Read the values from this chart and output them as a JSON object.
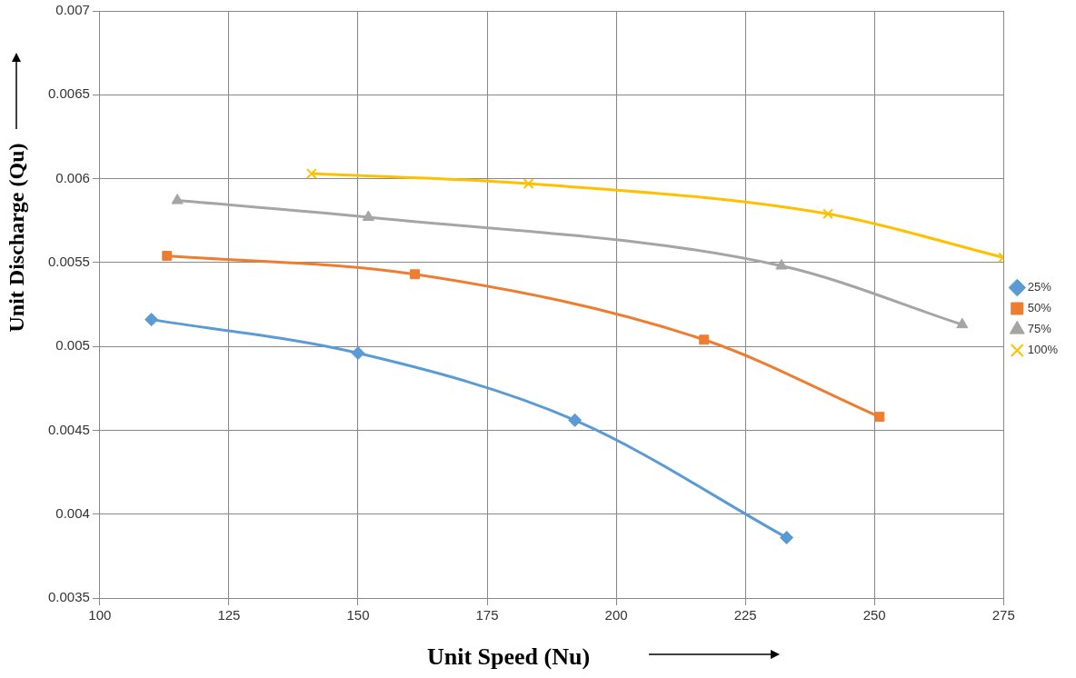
{
  "chart_data": {
    "type": "line",
    "xlabel": "Unit Speed (Nu)",
    "ylabel": "Unit Discharge (Qu)",
    "xlim": [
      100,
      275
    ],
    "xticks": [
      100,
      125,
      150,
      175,
      200,
      225,
      250,
      275
    ],
    "ylim": [
      0.0035,
      0.007
    ],
    "yticks": [
      0.0035,
      0.004,
      0.0045,
      0.005,
      0.0055,
      0.006,
      0.0065,
      0.007
    ],
    "grid": true,
    "legend": "right",
    "line_style": "solid",
    "series": [
      {
        "name": "25%",
        "color": "#5b9bd5",
        "marker": "diamond",
        "x": [
          110,
          150,
          192,
          233
        ],
        "values": [
          0.00516,
          0.00496,
          0.00456,
          0.00386
        ]
      },
      {
        "name": "50%",
        "color": "#ed7d31",
        "marker": "square",
        "x": [
          113,
          161,
          217,
          251
        ],
        "values": [
          0.00554,
          0.00543,
          0.00504,
          0.00458
        ]
      },
      {
        "name": "75%",
        "color": "#a5a5a5",
        "marker": "triangle",
        "x": [
          115,
          152,
          232,
          267
        ],
        "values": [
          0.00587,
          0.00577,
          0.00548,
          0.00513
        ]
      },
      {
        "name": "100%",
        "color": "#ffc000",
        "marker": "cross",
        "x": [
          141,
          183,
          241,
          275
        ],
        "values": [
          0.00603,
          0.00597,
          0.00579,
          0.00553
        ]
      }
    ]
  }
}
